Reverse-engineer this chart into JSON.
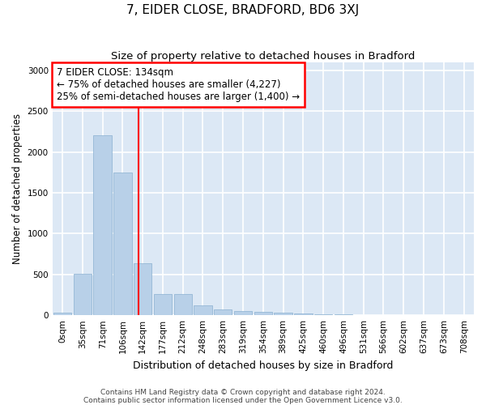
{
  "title": "7, EIDER CLOSE, BRADFORD, BD6 3XJ",
  "subtitle": "Size of property relative to detached houses in Bradford",
  "xlabel": "Distribution of detached houses by size in Bradford",
  "ylabel": "Number of detached properties",
  "categories": [
    "0sqm",
    "35sqm",
    "71sqm",
    "106sqm",
    "142sqm",
    "177sqm",
    "212sqm",
    "248sqm",
    "283sqm",
    "319sqm",
    "354sqm",
    "389sqm",
    "425sqm",
    "460sqm",
    "496sqm",
    "531sqm",
    "566sqm",
    "602sqm",
    "637sqm",
    "673sqm",
    "708sqm"
  ],
  "values": [
    30,
    510,
    2200,
    1750,
    640,
    260,
    260,
    120,
    70,
    50,
    40,
    30,
    20,
    15,
    10,
    5,
    4,
    3,
    3,
    2,
    2
  ],
  "bar_color": "#b8d0e8",
  "bar_edgecolor": "#8ab0d0",
  "background_color": "#dce8f5",
  "grid_color": "#ffffff",
  "annotation_line1": "7 EIDER CLOSE: 134sqm",
  "annotation_line2": "← 75% of detached houses are smaller (4,227)",
  "annotation_line3": "25% of semi-detached houses are larger (1,400) →",
  "ylim": [
    0,
    3100
  ],
  "yticks": [
    0,
    500,
    1000,
    1500,
    2000,
    2500,
    3000
  ],
  "footer1": "Contains HM Land Registry data © Crown copyright and database right 2024.",
  "footer2": "Contains public sector information licensed under the Open Government Licence v3.0.",
  "title_fontsize": 11,
  "subtitle_fontsize": 9.5,
  "xlabel_fontsize": 9,
  "ylabel_fontsize": 8.5,
  "tick_fontsize": 7.5,
  "footer_fontsize": 6.5,
  "annotation_fontsize": 8.5
}
